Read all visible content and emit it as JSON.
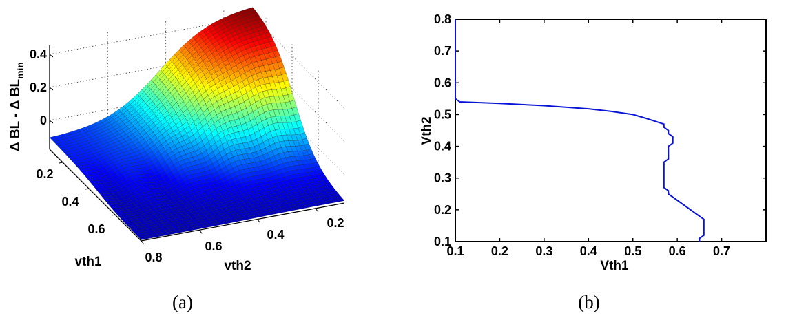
{
  "chart_data": [
    {
      "type": "surface",
      "panel": "(a)",
      "zlabel": "Δ BL - Δ BL",
      "zlabel_sub": "min",
      "xlabel": "vth1",
      "ylabel": "vth2",
      "xticks": [
        "0.2",
        "0.4",
        "0.6"
      ],
      "yticks": [
        "0.8",
        "0.6",
        "0.4",
        "0.2"
      ],
      "zticks": [
        "0",
        "0.2",
        "0.4"
      ],
      "xlim": [
        0.1,
        0.8
      ],
      "ylim": [
        0.1,
        0.8
      ],
      "zlim": [
        -0.175,
        0.48
      ],
      "colormap": "jet",
      "corner_values": {
        "vth1_0.1_vth2_0.1": 0.48,
        "vth1_0.1_vth2_0.8": -0.17,
        "vth1_0.8_vth2_0.1": -0.11,
        "vth1_0.8_vth2_0.8": -0.17
      }
    },
    {
      "type": "line",
      "panel": "(b)",
      "xlabel": "Vth1",
      "ylabel": "Vth2",
      "xlim": [
        0.1,
        0.8
      ],
      "ylim": [
        0.1,
        0.8
      ],
      "xticks": [
        "0.1",
        "0.2",
        "0.3",
        "0.4",
        "0.5",
        "0.6",
        "0.7"
      ],
      "yticks": [
        "0.1",
        "0.2",
        "0.3",
        "0.4",
        "0.5",
        "0.6",
        "0.7",
        "0.8"
      ],
      "series": [
        {
          "name": "contour",
          "color": "#0a14d8",
          "x": [
            0.1,
            0.1,
            0.11,
            0.2,
            0.3,
            0.4,
            0.45,
            0.5,
            0.53,
            0.57,
            0.57,
            0.58,
            0.58,
            0.59,
            0.59,
            0.58,
            0.58,
            0.57,
            0.57,
            0.58,
            0.58,
            0.66,
            0.66,
            0.65,
            0.65
          ],
          "y": [
            0.8,
            0.55,
            0.54,
            0.535,
            0.528,
            0.518,
            0.51,
            0.5,
            0.488,
            0.47,
            0.46,
            0.45,
            0.44,
            0.43,
            0.41,
            0.4,
            0.36,
            0.35,
            0.27,
            0.26,
            0.25,
            0.17,
            0.12,
            0.11,
            0.1
          ]
        }
      ]
    }
  ],
  "captions": {
    "a": "(a)",
    "b": "(b)"
  }
}
